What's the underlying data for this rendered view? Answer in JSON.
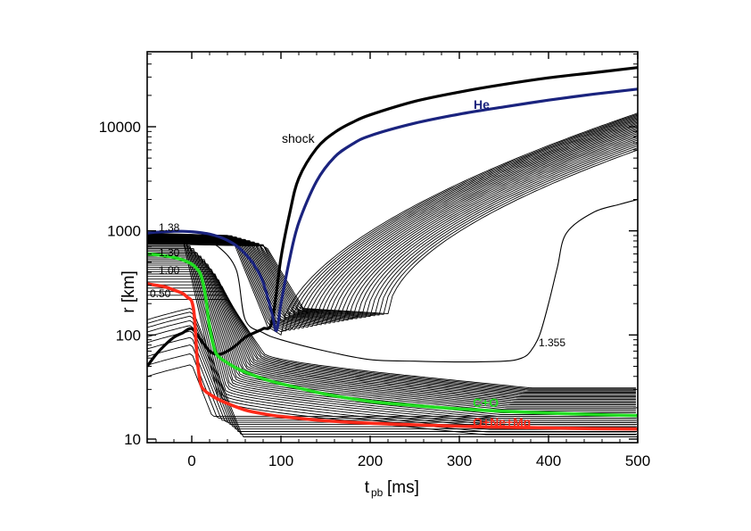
{
  "chart_data": {
    "type": "line",
    "title": "",
    "xlabel": "t",
    "xlabel_sub": "pb",
    "xlabel_units": "[ms]",
    "ylabel": "r [km]",
    "xlim": [
      -50,
      500
    ],
    "ylim": [
      10,
      50000
    ],
    "yscale": "log",
    "grid": false,
    "x_ticks": [
      0,
      100,
      200,
      300,
      400,
      500
    ],
    "y_ticks": [
      10,
      100,
      1000,
      10000
    ],
    "x_tick_labels": [
      "0",
      "100",
      "200",
      "300",
      "400",
      "500"
    ],
    "y_tick_labels": [
      "10",
      "100",
      "1000",
      "10000"
    ],
    "colors": {
      "He": "#1a237e",
      "CO": "#22dd22",
      "ONeMg": "#ff2a1a",
      "mass_shells": "#000000"
    },
    "annotations": {
      "shock": "shock",
      "He": "He",
      "CO": "C+O",
      "ONeMg": "O+Ne+Mg",
      "m1355": "1.355",
      "m138": "1.38",
      "m130": "1.30",
      "m100": "1.00",
      "m050": "0.50"
    },
    "series": [
      {
        "name": "shock",
        "color": "#000000",
        "x": [
          -50,
          -40,
          -30,
          -20,
          -10,
          0,
          10,
          20,
          30,
          40,
          50,
          60,
          70,
          80,
          90,
          100,
          110,
          120,
          140,
          160,
          180,
          200,
          250,
          300,
          350,
          400,
          450,
          500
        ],
        "y": [
          50,
          65,
          80,
          95,
          105,
          115,
          90,
          70,
          65,
          70,
          80,
          95,
          105,
          115,
          135,
          550,
          1500,
          3200,
          6200,
          8800,
          11000,
          13000,
          17500,
          21500,
          25500,
          29500,
          33000,
          37000
        ]
      },
      {
        "name": "He",
        "color": "#1a237e",
        "x": [
          -50,
          -40,
          -30,
          -20,
          -10,
          0,
          10,
          20,
          30,
          40,
          50,
          60,
          70,
          80,
          90,
          95,
          100,
          110,
          120,
          140,
          160,
          180,
          200,
          250,
          300,
          350,
          400,
          450,
          500
        ],
        "y": [
          950,
          970,
          980,
          990,
          990,
          980,
          960,
          930,
          880,
          810,
          720,
          600,
          470,
          320,
          160,
          110,
          200,
          550,
          1200,
          3000,
          5100,
          6800,
          8200,
          10800,
          13200,
          15500,
          18000,
          20500,
          23000
        ]
      },
      {
        "name": "C+O",
        "color": "#22dd22",
        "x": [
          -50,
          -40,
          -30,
          -20,
          -10,
          0,
          5,
          10,
          15,
          20,
          25,
          30,
          40,
          50,
          60,
          80,
          100,
          120,
          150,
          200,
          250,
          300,
          350,
          400,
          450,
          500
        ],
        "y": [
          600,
          590,
          575,
          555,
          525,
          480,
          440,
          380,
          250,
          120,
          75,
          62,
          54,
          48,
          44,
          38,
          34,
          31,
          27,
          23,
          21,
          19.5,
          18.5,
          17.8,
          17.2,
          16.8
        ]
      },
      {
        "name": "O+Ne+Mg",
        "color": "#ff2a1a",
        "x": [
          -50,
          -40,
          -30,
          -20,
          -10,
          -5,
          0,
          3,
          6,
          10,
          15,
          20,
          30,
          40,
          60,
          80,
          100,
          150,
          200,
          250,
          300,
          350,
          400,
          450,
          500
        ],
        "y": [
          310,
          300,
          290,
          270,
          250,
          230,
          210,
          150,
          60,
          34,
          29,
          27,
          24,
          22,
          19,
          17.5,
          16.5,
          15,
          14.2,
          13.7,
          13.3,
          13.0,
          12.8,
          12.6,
          12.5
        ]
      },
      {
        "name": "1.355",
        "color": "#000000",
        "x": [
          -50,
          -30,
          -10,
          10,
          30,
          50,
          60,
          80,
          100,
          150,
          200,
          250,
          300,
          350,
          370,
          380,
          390,
          400,
          410,
          420,
          450,
          480,
          500
        ],
        "y": [
          880,
          870,
          860,
          820,
          700,
          420,
          140,
          105,
          90,
          70,
          58,
          56,
          55,
          56,
          60,
          70,
          100,
          200,
          450,
          950,
          1500,
          1800,
          2000
        ]
      }
    ]
  }
}
